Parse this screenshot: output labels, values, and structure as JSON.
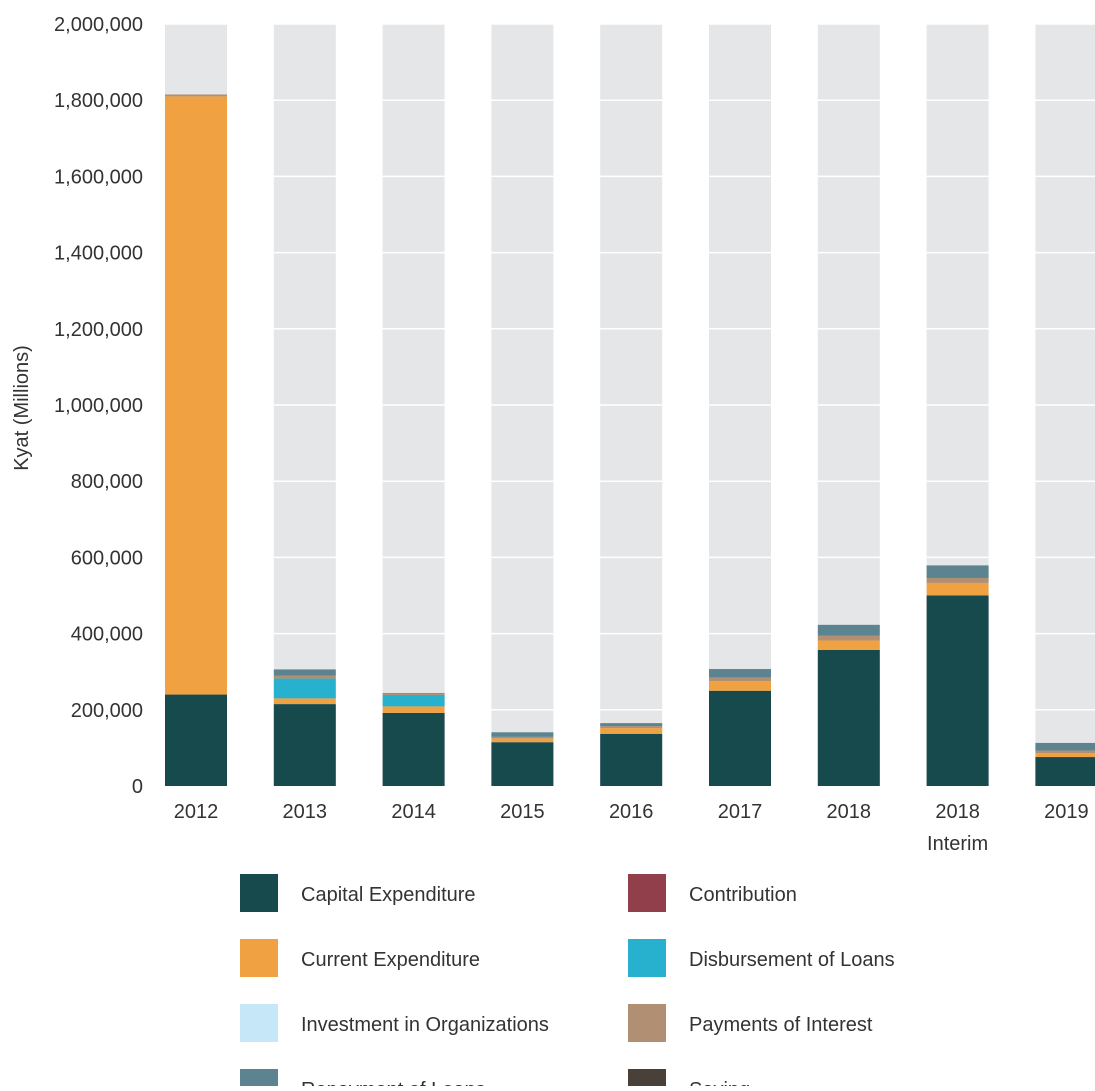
{
  "chart_data": {
    "type": "bar",
    "stacked": true,
    "title": "",
    "xlabel": "",
    "ylabel": "Kyat (Millions)",
    "ylim": [
      0,
      2000000
    ],
    "yticks": [
      0,
      200000,
      400000,
      600000,
      800000,
      1000000,
      1200000,
      1400000,
      1600000,
      1800000,
      2000000
    ],
    "ytick_labels": [
      "0",
      "200,000",
      "400,000",
      "600,000",
      "800,000",
      "1,000,000",
      "1,200,000",
      "1,400,000",
      "1,600,000",
      "1,800,000",
      "2,000,000"
    ],
    "categories": [
      "2012",
      "2013",
      "2014",
      "2015",
      "2016",
      "2017",
      "2018",
      "2018 Interim",
      "2019"
    ],
    "category_lines": [
      [
        "2012"
      ],
      [
        "2013"
      ],
      [
        "2014"
      ],
      [
        "2015"
      ],
      [
        "2016"
      ],
      [
        "2017"
      ],
      [
        "2018"
      ],
      [
        "2018",
        "Interim"
      ],
      [
        "2019"
      ]
    ],
    "grid": true,
    "legend_position": "bottom",
    "series": [
      {
        "name": "Capital Expenditure",
        "color": "#174a4d",
        "values": [
          240000,
          215000,
          192000,
          115000,
          137000,
          250000,
          357000,
          500000,
          76000
        ]
      },
      {
        "name": "Current Expenditure",
        "color": "#f0a243",
        "values": [
          1570000,
          15000,
          17000,
          10000,
          15000,
          25000,
          25000,
          33000,
          10000
        ]
      },
      {
        "name": "Disbursement of Loans",
        "color": "#27b1cf",
        "values": [
          0,
          52000,
          30000,
          0,
          0,
          0,
          0,
          0,
          0
        ]
      },
      {
        "name": "Investment in Organizations",
        "color": "#c5e7f7",
        "values": [
          0,
          0,
          0,
          0,
          0,
          0,
          0,
          0,
          0
        ]
      },
      {
        "name": "Payments of Interest",
        "color": "#b18f72",
        "values": [
          5000,
          8000,
          3000,
          4000,
          5000,
          10000,
          13000,
          13000,
          7000
        ]
      },
      {
        "name": "Repayment of Loans",
        "color": "#5b8490",
        "values": [
          0,
          16000,
          2000,
          12000,
          8000,
          22000,
          28000,
          33000,
          20000
        ]
      },
      {
        "name": "Contribution",
        "color": "#913f4a",
        "values": [
          0,
          0,
          0,
          0,
          0,
          0,
          0,
          0,
          0
        ]
      },
      {
        "name": "Saving",
        "color": "#4a403a",
        "values": [
          0,
          0,
          0,
          0,
          0,
          0,
          0,
          0,
          0
        ]
      }
    ],
    "legend": [
      {
        "name": "Capital Expenditure",
        "color": "#174a4d"
      },
      {
        "name": "Contribution",
        "color": "#913f4a"
      },
      {
        "name": "Current Expenditure",
        "color": "#f0a243"
      },
      {
        "name": "Disbursement of Loans",
        "color": "#27b1cf"
      },
      {
        "name": "Investment in Organizations",
        "color": "#c5e7f7"
      },
      {
        "name": "Payments of Interest",
        "color": "#b18f72"
      },
      {
        "name": "Repayment of Loans",
        "color": "#5b8490"
      },
      {
        "name": "Saving",
        "color": "#4a403a"
      }
    ],
    "colors": {
      "column_background": "#e5e6e8",
      "gridline": "#ffffff"
    }
  }
}
